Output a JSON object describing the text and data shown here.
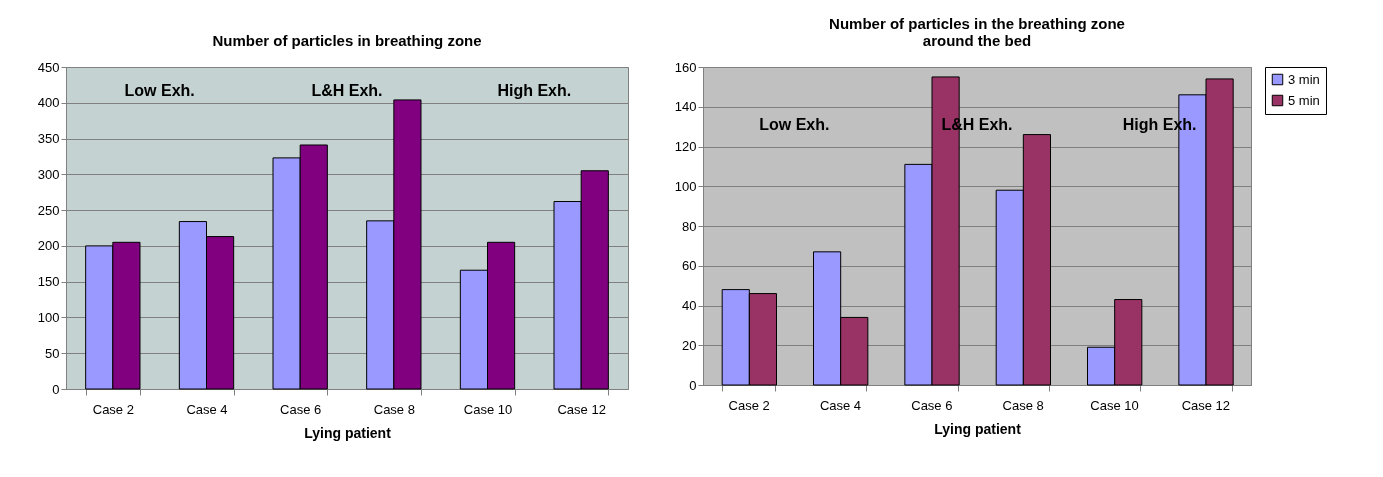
{
  "chart_data": [
    {
      "type": "bar",
      "title": "Number of particles in breathing zone",
      "xlabel": "Lying patient",
      "categories": [
        "Case 2",
        "Case 4",
        "Case 6",
        "Case 8",
        "Case 10",
        "Case 12"
      ],
      "series": [
        {
          "color": "#9999ff",
          "values": [
            200,
            234,
            323,
            235,
            166,
            262
          ]
        },
        {
          "color": "#800080",
          "values": [
            205,
            213,
            341,
            404,
            205,
            305
          ]
        }
      ],
      "ylim": [
        0,
        450
      ],
      "yticks": [
        0,
        50,
        100,
        150,
        200,
        250,
        300,
        350,
        400,
        450
      ],
      "grid": "y",
      "legend": false,
      "annotations": [
        "Low Exh.",
        "L&H Exh.",
        "High Exh."
      ]
    },
    {
      "type": "bar",
      "title": "Number of particles in the breathing zone\naround the bed",
      "xlabel": "Lying patient",
      "categories": [
        "Case 2",
        "Case 4",
        "Case 6",
        "Case 8",
        "Case 10",
        "Case 12"
      ],
      "series": [
        {
          "name": "3 min",
          "color": "#9999ff",
          "values": [
            48,
            67,
            111,
            98,
            19,
            146
          ]
        },
        {
          "name": "5 min",
          "color": "#993366",
          "values": [
            46,
            34,
            155,
            126,
            43,
            154
          ]
        }
      ],
      "ylim": [
        0,
        160
      ],
      "yticks": [
        0,
        20,
        40,
        60,
        80,
        100,
        120,
        140,
        160
      ],
      "grid": "y",
      "legend": "right",
      "annotations": [
        "Low Exh.",
        "L&H Exh.",
        "High Exh."
      ]
    }
  ]
}
